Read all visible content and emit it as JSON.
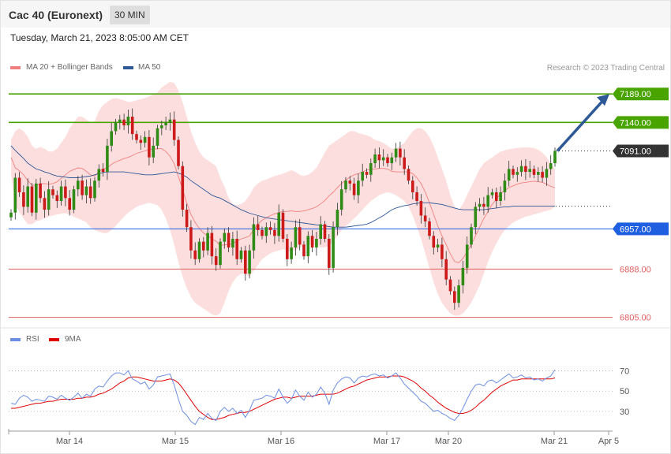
{
  "header": {
    "title": "Cac 40 (Euronext)",
    "timeframe": "30 MIN"
  },
  "datetime": "Tuesday, March 21, 2023 8:05:00 AM CET",
  "credit": "Research © 2023 Trading Central",
  "colors": {
    "up": "#2e8b16",
    "down": "#cc1a1a",
    "bands": "#fddede",
    "ma20": "#f08080",
    "ma50": "#2e5896",
    "resistance": "#4aa400",
    "pivot": "#1f5fe0",
    "support": "#e06060",
    "rsi": "#6b8de3",
    "rsi_ma": "#e00000"
  },
  "chart_data": [
    {
      "type": "candlestick",
      "legend": [
        {
          "label": "MA 20 + Bollinger Bands",
          "color": "#f08080"
        },
        {
          "label": "MA 50",
          "color": "#2e5896"
        }
      ],
      "ylim": [
        6795,
        7215
      ],
      "x_tick_labels": [
        "Mar 14",
        "Mar 15",
        "Mar 16",
        "Mar 17",
        "Mar 20",
        "Mar 21",
        "Apr 5"
      ],
      "levels": [
        {
          "value": 7189,
          "label": "7189.00",
          "kind": "resistance"
        },
        {
          "value": 7140,
          "label": "7140.00",
          "kind": "resistance"
        },
        {
          "value": 7091,
          "label": "7091.00",
          "kind": "last"
        },
        {
          "value": 6957,
          "label": "6957.00",
          "kind": "pivot"
        },
        {
          "value": 6888,
          "label": "6888.00",
          "kind": "support"
        },
        {
          "value": 6805,
          "label": "6805.00",
          "kind": "support"
        }
      ],
      "projection": {
        "from": 7091,
        "to": 7189
      },
      "closes": [
        6985,
        7045,
        7020,
        6995,
        7030,
        6985,
        7035,
        7010,
        6990,
        7025,
        7015,
        7005,
        7030,
        7010,
        6990,
        7025,
        7040,
        7015,
        7030,
        7010,
        7040,
        7060,
        7055,
        7100,
        7125,
        7140,
        7145,
        7135,
        7150,
        7120,
        7110,
        7105,
        7115,
        7080,
        7100,
        7130,
        7135,
        7140,
        7145,
        7110,
        7065,
        6990,
        6960,
        6920,
        6905,
        6935,
        6920,
        6950,
        6910,
        6895,
        6935,
        6950,
        6925,
        6940,
        6905,
        6920,
        6880,
        6920,
        6965,
        6955,
        6945,
        6960,
        6955,
        6945,
        6985,
        6940,
        6905,
        6925,
        6960,
        6930,
        6910,
        6945,
        6925,
        6940,
        6965,
        6940,
        6890,
        6960,
        6990,
        7025,
        7040,
        7035,
        7015,
        7040,
        7055,
        7050,
        7070,
        7085,
        7075,
        7080,
        7070,
        7080,
        7095,
        7080,
        7060,
        7040,
        7020,
        7005,
        6980,
        6970,
        6945,
        6925,
        6930,
        6905,
        6870,
        6850,
        6830,
        6860,
        6890,
        6930,
        6960,
        6995,
        7000,
        6995,
        7015,
        7020,
        7005,
        7020,
        7040,
        7060,
        7050,
        7055,
        7065,
        7055,
        7060,
        7050,
        7055,
        7045,
        7060,
        7070,
        7091
      ],
      "bb_upper": [
        7110,
        7125,
        7130,
        7125,
        7115,
        7100,
        7095,
        7098,
        7095,
        7090,
        7090,
        7095,
        7105,
        7115,
        7130,
        7140,
        7150,
        7150,
        7145,
        7140,
        7142,
        7160,
        7170,
        7175,
        7180,
        7182,
        7180,
        7178,
        7175,
        7176,
        7178,
        7180,
        7182,
        7185,
        7188,
        7192,
        7200,
        7205,
        7210,
        7208,
        7195,
        7175,
        7150,
        7125,
        7105,
        7090,
        7080,
        7075,
        7070,
        7065,
        7045,
        7030,
        7010,
        7000,
        6998,
        7000,
        7005,
        7015,
        7028,
        7035,
        7040,
        7042,
        7045,
        7048,
        7050,
        7052,
        7055,
        7058,
        7055,
        7050,
        7048,
        7050,
        7055,
        7062,
        7075,
        7088,
        7100,
        7105,
        7110,
        7115,
        7120,
        7125,
        7125,
        7122,
        7120,
        7118,
        7115,
        7110,
        7108,
        7105,
        7100,
        7095,
        7095,
        7100,
        7105,
        7115,
        7125,
        7130,
        7130,
        7125,
        7115,
        7100,
        7080,
        7060,
        7040,
        7015,
        6995,
        6990,
        7000,
        7015,
        7030,
        7045,
        7060,
        7070,
        7075,
        7080,
        7085,
        7090,
        7092,
        7094,
        7095,
        7096,
        7097,
        7097,
        7097,
        7096,
        7093,
        7088,
        7080,
        7070,
        7060
      ],
      "bb_lower": [
        7050,
        7000,
        6985,
        6975,
        6965,
        6965,
        6970,
        6972,
        6975,
        6978,
        6980,
        6982,
        6983,
        6984,
        6982,
        6978,
        6975,
        6972,
        6968,
        6960,
        6955,
        6952,
        6950,
        6950,
        6955,
        6962,
        6970,
        6978,
        6985,
        6990,
        6995,
        6998,
        7000,
        7002,
        7000,
        6998,
        6990,
        6975,
        6955,
        6930,
        6900,
        6875,
        6855,
        6840,
        6830,
        6825,
        6820,
        6815,
        6810,
        6808,
        6812,
        6830,
        6850,
        6865,
        6875,
        6880,
        6880,
        6875,
        6885,
        6895,
        6905,
        6910,
        6915,
        6918,
        6920,
        6922,
        6920,
        6918,
        6920,
        6925,
        6928,
        6930,
        6930,
        6928,
        6925,
        6925,
        6928,
        6935,
        6945,
        6955,
        6962,
        6968,
        6975,
        6982,
        6990,
        6998,
        7005,
        7010,
        7015,
        7018,
        7020,
        7018,
        7015,
        7010,
        7005,
        6995,
        6980,
        6960,
        6940,
        6915,
        6890,
        6865,
        6845,
        6830,
        6820,
        6812,
        6808,
        6808,
        6812,
        6820,
        6830,
        6845,
        6860,
        6880,
        6900,
        6918,
        6932,
        6945,
        6955,
        6962,
        6968,
        6972,
        6975,
        6978,
        6980,
        6982,
        6984,
        6986,
        6988,
        6990,
        6995
      ],
      "ma20": [
        7080,
        7062,
        7057,
        7050,
        7040,
        7032,
        7032,
        7035,
        7035,
        7034,
        7035,
        7038,
        7044,
        7050,
        7056,
        7059,
        7062,
        7061,
        7056,
        7050,
        7048,
        7056,
        7060,
        7062,
        7068,
        7072,
        7075,
        7078,
        7080,
        7083,
        7087,
        7089,
        7091,
        7094,
        7094,
        7095,
        7095,
        7090,
        7082,
        7069,
        7047,
        7025,
        7002,
        6982,
        6968,
        6958,
        6950,
        6945,
        6940,
        6936,
        6928,
        6930,
        6930,
        6932,
        6936,
        6940,
        6942,
        6945,
        6956,
        6965,
        6972,
        6976,
        6980,
        6983,
        6985,
        6987,
        6987,
        6988,
        6987,
        6987,
        6988,
        6990,
        6992,
        6995,
        7000,
        7006,
        7014,
        7020,
        7028,
        7035,
        7041,
        7046,
        7050,
        7052,
        7055,
        7058,
        7060,
        7060,
        7061,
        7061,
        7060,
        7056,
        7055,
        7055,
        7055,
        7055,
        7052,
        7045,
        7035,
        7020,
        7002,
        6982,
        6962,
        6945,
        6930,
        6914,
        6901,
        6899,
        6906,
        6918,
        6930,
        6945,
        6960,
        6975,
        6987,
        6999,
        7008,
        7018,
        7023,
        7028,
        7031,
        7034,
        7036,
        7037,
        7038,
        7039,
        7038,
        7037,
        7034,
        7030,
        7028
      ],
      "ma50": [
        7100,
        7092,
        7085,
        7078,
        7070,
        7065,
        7060,
        7058,
        7055,
        7053,
        7050,
        7048,
        7047,
        7046,
        7045,
        7045,
        7045,
        7046,
        7047,
        7048,
        7050,
        7052,
        7054,
        7055,
        7055,
        7055,
        7055,
        7055,
        7054,
        7053,
        7052,
        7051,
        7050,
        7050,
        7050,
        7051,
        7052,
        7053,
        7054,
        7055,
        7053,
        7050,
        7046,
        7040,
        7035,
        7030,
        7025,
        7020,
        7015,
        7012,
        7010,
        7006,
        7002,
        6998,
        6994,
        6990,
        6987,
        6984,
        6982,
        6980,
        6978,
        6976,
        6975,
        6974,
        6973,
        6972,
        6971,
        6970,
        6969,
        6968,
        6967,
        6966,
        6965,
        6964,
        6963,
        6962,
        6961,
        6960,
        6960,
        6960,
        6960,
        6961,
        6962,
        6963,
        6964,
        6965,
        6968,
        6972,
        6976,
        6980,
        6985,
        6990,
        6993,
        6995,
        6997,
        6998,
        7000,
        7001,
        7002,
        7002,
        7002,
        7001,
        7000,
        6999,
        6997,
        6995,
        6993,
        6991,
        6990,
        6990,
        6990,
        6990,
        6990,
        6990,
        6991,
        6992,
        6993,
        6994,
        6995,
        6995,
        6996,
        6996,
        6996,
        6996,
        6996,
        6996,
        6996,
        6996,
        6996,
        6996,
        6996
      ]
    },
    {
      "type": "line",
      "legend": [
        {
          "label": "RSI",
          "color": "#6b8de3"
        },
        {
          "label": "9MA",
          "color": "#e00000"
        }
      ],
      "ylim": [
        12,
        86
      ],
      "y_tick_labels": [
        "70",
        "50",
        "30"
      ],
      "y_ticks": [
        70,
        50,
        30
      ],
      "rsi": [
        38,
        37,
        43,
        46,
        44,
        40,
        42,
        41,
        40,
        45,
        44,
        42,
        46,
        43,
        41,
        44,
        48,
        43,
        47,
        45,
        52,
        55,
        54,
        60,
        65,
        68,
        68,
        66,
        70,
        62,
        60,
        57,
        59,
        52,
        56,
        64,
        65,
        66,
        67,
        56,
        42,
        30,
        26,
        20,
        17,
        24,
        22,
        28,
        23,
        21,
        30,
        34,
        30,
        33,
        28,
        31,
        24,
        31,
        41,
        42,
        43,
        46,
        45,
        43,
        52,
        44,
        38,
        42,
        51,
        45,
        41,
        49,
        44,
        47,
        54,
        48,
        37,
        51,
        58,
        62,
        64,
        63,
        58,
        63,
        65,
        64,
        66,
        67,
        65,
        66,
        63,
        65,
        68,
        63,
        57,
        53,
        49,
        45,
        40,
        38,
        34,
        30,
        31,
        28,
        26,
        23,
        21,
        26,
        33,
        42,
        50,
        56,
        57,
        55,
        60,
        61,
        58,
        61,
        64,
        67,
        63,
        64,
        66,
        63,
        64,
        61,
        62,
        60,
        63,
        65,
        71
      ],
      "rsi_ma": [
        33,
        33,
        34,
        35,
        36,
        37,
        38,
        38,
        39,
        40,
        40,
        41,
        42,
        42,
        42,
        42,
        43,
        43,
        44,
        44,
        45,
        47,
        48,
        50,
        52,
        55,
        58,
        60,
        63,
        64,
        64,
        63,
        62,
        61,
        60,
        60,
        60,
        61,
        62,
        61,
        58,
        53,
        47,
        41,
        35,
        30,
        27,
        24,
        22,
        22,
        23,
        24,
        26,
        27,
        28,
        29,
        29,
        30,
        32,
        34,
        36,
        38,
        40,
        42,
        43,
        44,
        44,
        43,
        44,
        45,
        45,
        45,
        45,
        46,
        47,
        47,
        47,
        47,
        48,
        50,
        52,
        54,
        55,
        57,
        59,
        61,
        62,
        63,
        64,
        64,
        64,
        65,
        65,
        65,
        64,
        62,
        60,
        57,
        53,
        50,
        46,
        43,
        39,
        36,
        33,
        31,
        29,
        28,
        28,
        29,
        31,
        34,
        38,
        41,
        45,
        49,
        52,
        55,
        57,
        59,
        61,
        61,
        62,
        62,
        62,
        62,
        62,
        62,
        62,
        62,
        63
      ]
    }
  ]
}
